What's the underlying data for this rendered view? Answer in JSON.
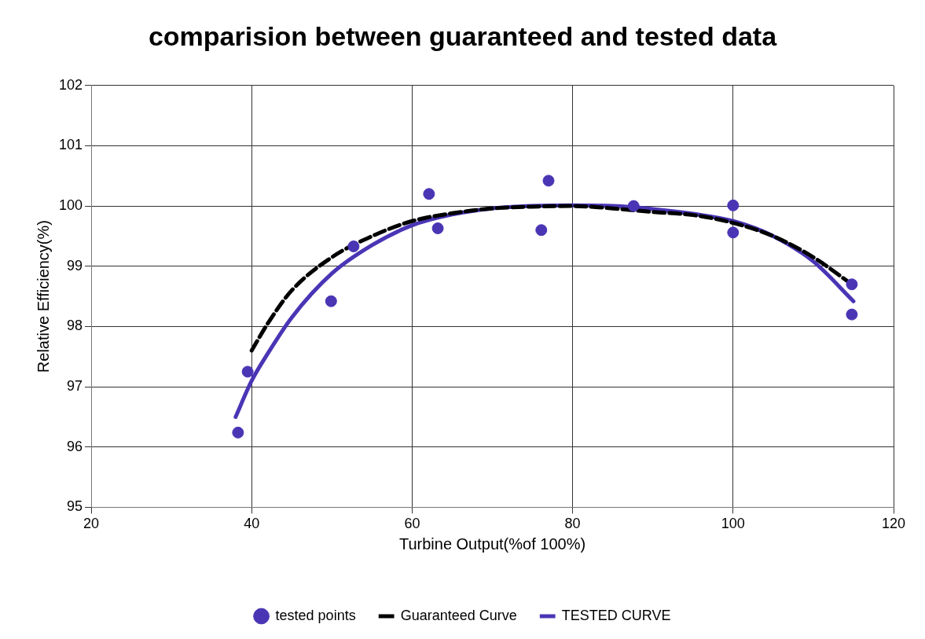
{
  "chart_data": {
    "type": "scatter",
    "title": "comparision between guaranteed and tested data",
    "xlabel": "Turbine Output(%of 100%)",
    "ylabel": "Relative Efficiency(%)",
    "xlim": [
      20,
      120
    ],
    "xticks": [
      20,
      40,
      60,
      80,
      100,
      120
    ],
    "ylim": [
      95,
      102
    ],
    "yticks": [
      95,
      96,
      97,
      98,
      99,
      100,
      101,
      102
    ],
    "grid": true,
    "legend": "bottom",
    "series": [
      {
        "name": "tested points",
        "marker": "circle",
        "color": "#4a35b5",
        "x": [
          38.3,
          39.5,
          49.9,
          52.7,
          62.1,
          63.2,
          76.1,
          77.0,
          87.6,
          100,
          100,
          114.8,
          114.8
        ],
        "values": [
          96.24,
          97.25,
          98.42,
          99.33,
          100.2,
          99.63,
          99.6,
          100.42,
          100.0,
          100.01,
          99.56,
          98.7,
          98.2
        ]
      },
      {
        "name": "Guaranteed Curve",
        "type": "line",
        "marker": "none",
        "line_style": "dashed",
        "color": "#000000",
        "x": [
          40,
          42,
          45,
          50,
          55,
          60,
          65,
          70,
          75,
          80,
          85,
          90,
          95,
          100,
          105,
          110,
          115
        ],
        "values": [
          97.6,
          98.05,
          98.6,
          99.15,
          99.5,
          99.75,
          99.88,
          99.96,
          99.99,
          100.0,
          99.96,
          99.9,
          99.85,
          99.72,
          99.5,
          99.15,
          98.68
        ]
      },
      {
        "name": "TESTED CURVE",
        "type": "line",
        "marker": "none",
        "line_style": "solid",
        "color": "#4a35b5",
        "x": [
          38,
          40,
          42,
          45,
          50,
          55,
          60,
          65,
          70,
          75,
          80,
          85,
          90,
          95,
          100,
          105,
          110,
          115
        ],
        "values": [
          96.5,
          97.1,
          97.55,
          98.15,
          98.88,
          99.35,
          99.68,
          99.86,
          99.96,
          100.0,
          100.01,
          100.0,
          99.95,
          99.87,
          99.75,
          99.5,
          99.08,
          98.42
        ]
      }
    ]
  }
}
